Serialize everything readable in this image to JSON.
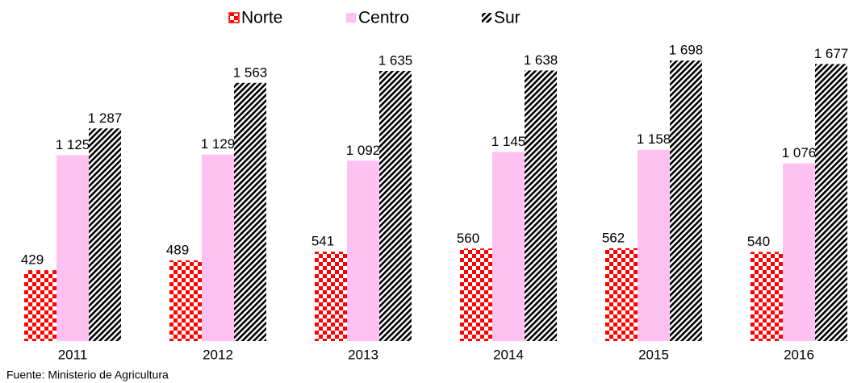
{
  "chart_data": {
    "type": "bar",
    "categories": [
      "2011",
      "2012",
      "2013",
      "2014",
      "2015",
      "2016"
    ],
    "series": [
      {
        "name": "Norte",
        "color": "#ff0000",
        "pattern": "checker",
        "values": [
          429,
          489,
          541,
          560,
          562,
          540
        ],
        "value_labels": [
          "429",
          "489",
          "541",
          "560",
          "562",
          "540"
        ]
      },
      {
        "name": "Centro",
        "color": "#ffc0f2",
        "pattern": "solid",
        "values": [
          1125,
          1129,
          1092,
          1145,
          1158,
          1076
        ],
        "value_labels": [
          "1 125",
          "1 129",
          "1 092",
          "1 145",
          "1 158",
          "1 076"
        ]
      },
      {
        "name": "Sur",
        "color": "#000000",
        "pattern": "stripes",
        "values": [
          1287,
          1563,
          1635,
          1638,
          1698,
          1677
        ],
        "value_labels": [
          "1 287",
          "1 563",
          "1 635",
          "1 638",
          "1 698",
          "1 677"
        ]
      }
    ],
    "ylim": [
      0,
      2050
    ],
    "legend": "top",
    "source": "Fuente: Ministerio de Agricultura"
  }
}
